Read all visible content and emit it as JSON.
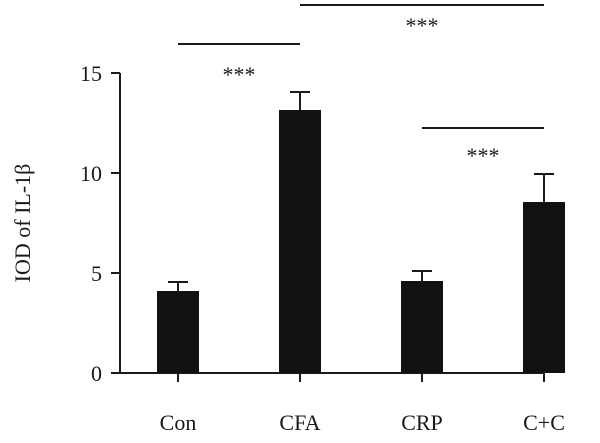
{
  "chart_data": {
    "type": "bar",
    "categories": [
      "Con",
      "CFA",
      "CRP",
      "C+C"
    ],
    "values": [
      4.1,
      13.15,
      4.6,
      8.55
    ],
    "errors": [
      0.45,
      0.9,
      0.5,
      1.4
    ],
    "ylabel": "IOD of IL-1β",
    "xlabel": "",
    "ylim": [
      0,
      15
    ],
    "yticks": [
      0,
      5,
      10,
      15
    ],
    "bar_color": "#111111",
    "grid": false,
    "significance": [
      {
        "from": 0,
        "to": 1,
        "label": "***"
      },
      {
        "from": 1,
        "to": 3,
        "label": "***"
      },
      {
        "from": 2,
        "to": 3,
        "label": "***"
      }
    ]
  }
}
